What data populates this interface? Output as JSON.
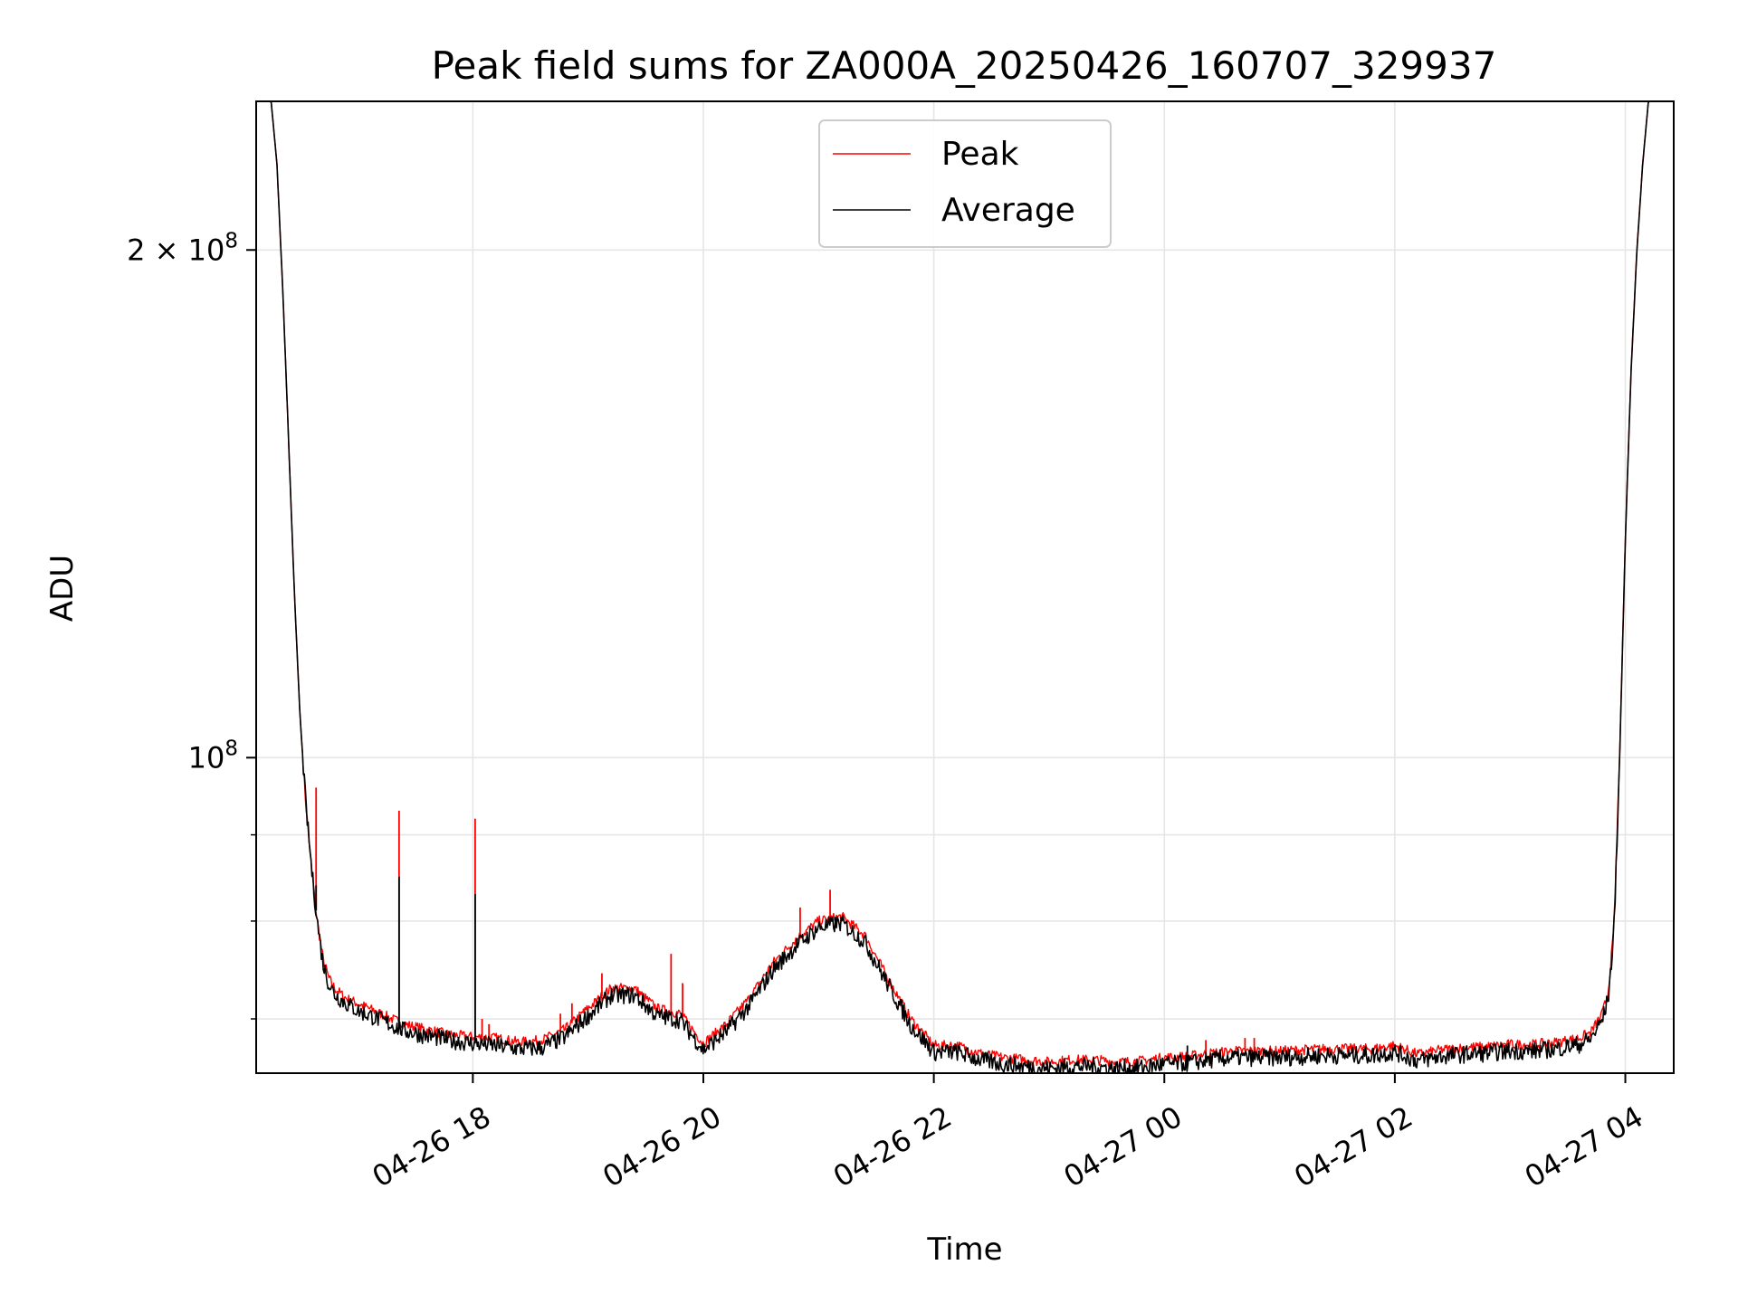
{
  "chart_data": {
    "type": "line",
    "title": "Peak field sums for ZA000A_20250426_160707_329937",
    "xlabel": "Time",
    "ylabel": "ADU",
    "y_scale": "log",
    "ylim": [
      65000000,
      245000000
    ],
    "xlim_hours": [
      16.12,
      28.42
    ],
    "grid": true,
    "legend_position": "upper center",
    "x_ticks": [
      {
        "hour": 18,
        "label": "04-26 18"
      },
      {
        "hour": 20,
        "label": "04-26 20"
      },
      {
        "hour": 22,
        "label": "04-26 22"
      },
      {
        "hour": 24,
        "label": "04-27 00"
      },
      {
        "hour": 26,
        "label": "04-27 02"
      },
      {
        "hour": 28,
        "label": "04-27 04"
      }
    ],
    "y_major_ticks": [
      {
        "value": 100000000,
        "base": "10",
        "exp": "8",
        "mult": ""
      },
      {
        "value": 200000000,
        "base": "10",
        "exp": "8",
        "mult": "2 × "
      }
    ],
    "y_minor_ticks": [
      70000000,
      80000000,
      90000000
    ],
    "series": [
      {
        "name": "Peak",
        "color": "#ff0000",
        "x_hours": [
          16.12,
          16.25,
          16.3,
          16.35,
          16.4,
          16.45,
          16.5,
          16.55,
          16.6,
          16.65,
          16.7,
          16.75,
          16.8,
          16.9,
          17.0,
          17.2,
          17.4,
          17.6,
          17.8,
          18.0,
          18.2,
          18.4,
          18.6,
          18.8,
          19.0,
          19.2,
          19.4,
          19.6,
          19.8,
          20.0,
          20.2,
          20.4,
          20.6,
          20.8,
          21.0,
          21.2,
          21.4,
          21.6,
          21.8,
          22.0,
          22.2,
          22.4,
          22.6,
          22.8,
          23.0,
          23.2,
          23.4,
          23.6,
          23.8,
          24.0,
          24.2,
          24.4,
          24.6,
          24.8,
          25.0,
          25.2,
          25.4,
          25.6,
          25.8,
          26.0,
          26.2,
          26.4,
          26.6,
          26.8,
          27.0,
          27.2,
          27.4,
          27.6,
          27.7,
          27.8,
          27.85,
          27.9,
          27.95,
          28.0,
          28.05,
          28.1,
          28.15,
          28.2,
          28.3,
          28.42
        ],
        "values": [
          245000000,
          245000000,
          225000000,
          190000000,
          155000000,
          126000000,
          106000000,
          94000000,
          86000000,
          80000000,
          76000000,
          74000000,
          73000000,
          72000000,
          71500000,
          70500000,
          69500000,
          69000000,
          68500000,
          68300000,
          68200000,
          67800000,
          68000000,
          69000000,
          71000000,
          73000000,
          73000000,
          71000000,
          70500000,
          67700000,
          69500000,
          72000000,
          75500000,
          78000000,
          80000000,
          80500000,
          78500000,
          74000000,
          70000000,
          67500000,
          67500000,
          66800000,
          66400000,
          66200000,
          66000000,
          66200000,
          66200000,
          66000000,
          66100000,
          66400000,
          66500000,
          66800000,
          67000000,
          67000000,
          67000000,
          67100000,
          67200000,
          67200000,
          67200000,
          67500000,
          66700000,
          67100000,
          67300000,
          67400000,
          67600000,
          67600000,
          67800000,
          68200000,
          68700000,
          70500000,
          72500000,
          79000000,
          100000000,
          135000000,
          170000000,
          200000000,
          225000000,
          245000000,
          245000000,
          245000000
        ],
        "spikes": [
          {
            "hour": 16.64,
            "value": 96000000
          },
          {
            "hour": 17.36,
            "value": 93000000
          },
          {
            "hour": 18.02,
            "value": 92000000
          },
          {
            "hour": 18.08,
            "value": 70000000
          },
          {
            "hour": 18.14,
            "value": 69500000
          },
          {
            "hour": 18.76,
            "value": 70500000
          },
          {
            "hour": 18.86,
            "value": 71500000
          },
          {
            "hour": 18.96,
            "value": 71000000
          },
          {
            "hour": 19.12,
            "value": 74500000
          },
          {
            "hour": 19.72,
            "value": 76500000
          },
          {
            "hour": 19.82,
            "value": 73500000
          },
          {
            "hour": 20.84,
            "value": 81500000
          },
          {
            "hour": 21.1,
            "value": 83500000
          },
          {
            "hour": 24.36,
            "value": 68000000
          },
          {
            "hour": 24.7,
            "value": 68200000
          },
          {
            "hour": 24.78,
            "value": 68200000
          }
        ]
      },
      {
        "name": "Average",
        "color": "#000000",
        "x_hours": [
          16.12,
          16.25,
          16.3,
          16.35,
          16.4,
          16.45,
          16.5,
          16.55,
          16.6,
          16.65,
          16.7,
          16.75,
          16.8,
          16.9,
          17.0,
          17.2,
          17.4,
          17.6,
          17.8,
          18.0,
          18.2,
          18.4,
          18.6,
          18.8,
          19.0,
          19.2,
          19.4,
          19.6,
          19.8,
          20.0,
          20.2,
          20.4,
          20.6,
          20.8,
          21.0,
          21.2,
          21.4,
          21.6,
          21.8,
          22.0,
          22.2,
          22.4,
          22.6,
          22.8,
          23.0,
          23.2,
          23.4,
          23.6,
          23.8,
          24.0,
          24.2,
          24.4,
          24.6,
          24.8,
          25.0,
          25.2,
          25.4,
          25.6,
          25.8,
          26.0,
          26.2,
          26.4,
          26.6,
          26.8,
          27.0,
          27.2,
          27.4,
          27.6,
          27.7,
          27.8,
          27.85,
          27.9,
          27.95,
          28.0,
          28.05,
          28.1,
          28.15,
          28.2,
          28.3,
          28.42
        ],
        "values": [
          245000000,
          245000000,
          225000000,
          190000000,
          155000000,
          126000000,
          106000000,
          94000000,
          86000000,
          80000000,
          75500000,
          73500000,
          72400000,
          71500000,
          70800000,
          69900000,
          68900000,
          68400000,
          68000000,
          67700000,
          67500000,
          67200000,
          67300000,
          68300000,
          70300000,
          72300000,
          72300000,
          70300000,
          69900000,
          67100000,
          68800000,
          71300000,
          74800000,
          77300000,
          79300000,
          79800000,
          77800000,
          73400000,
          69400000,
          66900000,
          66900000,
          66200000,
          65800000,
          65600000,
          65400000,
          65600000,
          65600000,
          65400000,
          65500000,
          65800000,
          65900000,
          66200000,
          66400000,
          66400000,
          66400000,
          66500000,
          66600000,
          66600000,
          66600000,
          66900000,
          66100000,
          66500000,
          66700000,
          66800000,
          67000000,
          67000000,
          67200000,
          67600000,
          68100000,
          69900000,
          71900000,
          78400000,
          99500000,
          134500000,
          169500000,
          199500000,
          224500000,
          245000000,
          245000000,
          245000000
        ],
        "spikes": [
          {
            "hour": 16.64,
            "value": 84000000
          },
          {
            "hour": 17.36,
            "value": 85000000
          },
          {
            "hour": 18.02,
            "value": 83000000
          },
          {
            "hour": 24.2,
            "value": 67500000
          }
        ]
      }
    ]
  }
}
